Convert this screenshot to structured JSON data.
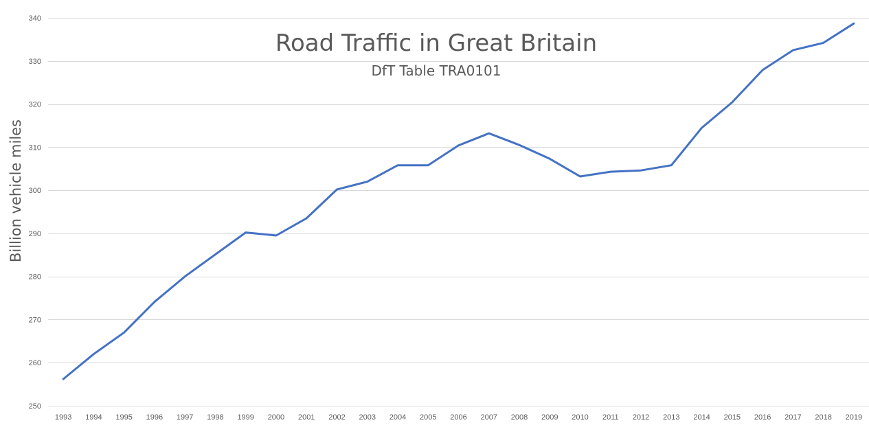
{
  "chart_data": {
    "type": "line",
    "title": "Road Traffic in Great Britain",
    "subtitle": "DfT Table TRA0101",
    "xlabel": "",
    "ylabel": "Billion vehicle miles",
    "ylim": [
      250,
      340
    ],
    "yticks": [
      250,
      260,
      270,
      280,
      290,
      300,
      310,
      320,
      330,
      340
    ],
    "grid": true,
    "legend": "none",
    "categories": [
      "1993",
      "1994",
      "1995",
      "1996",
      "1997",
      "1998",
      "1999",
      "2000",
      "2001",
      "2002",
      "2003",
      "2004",
      "2005",
      "2006",
      "2007",
      "2008",
      "2009",
      "2010",
      "2011",
      "2012",
      "2013",
      "2014",
      "2015",
      "2016",
      "2017",
      "2018",
      "2019"
    ],
    "series": [
      {
        "name": "Road traffic",
        "color": "#4472c4",
        "values": [
          256.2,
          262.0,
          267.0,
          274.1,
          280.0,
          285.1,
          290.2,
          289.5,
          293.5,
          300.2,
          302.0,
          305.8,
          305.8,
          310.4,
          313.2,
          310.5,
          307.3,
          303.2,
          304.3,
          304.6,
          305.8,
          314.5,
          320.4,
          327.9,
          332.5,
          334.2,
          338.7
        ]
      }
    ],
    "colors": {
      "grid": "#d9d9d9",
      "text": "#595959",
      "background": "#ffffff"
    }
  }
}
